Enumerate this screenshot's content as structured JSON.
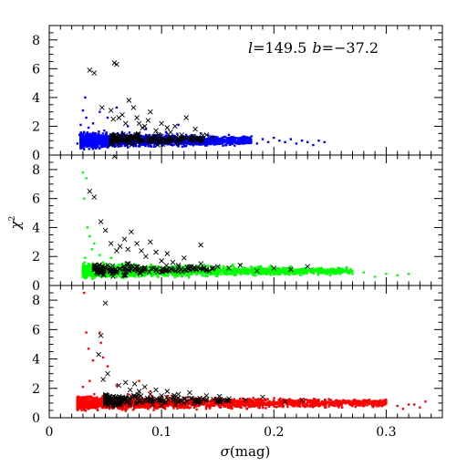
{
  "chart_data": [
    {
      "type": "scatter",
      "annotation": {
        "l_symbol": "l",
        "l_value": "=149.5",
        "b_symbol": "b",
        "b_value": "=−37.2"
      },
      "xlim": [
        0,
        0.35
      ],
      "ylim": [
        0,
        9
      ],
      "yticks": [
        "0",
        "2",
        "4",
        "6",
        "8"
      ],
      "grid": false,
      "series": [
        {
          "marker": "dot",
          "color": "#0000ff",
          "points": [
            [
              0.025,
              0.8
            ],
            [
              0.027,
              1.4
            ],
            [
              0.028,
              2.1
            ],
            [
              0.028,
              0.5
            ],
            [
              0.029,
              1.1
            ],
            [
              0.03,
              0.9
            ],
            [
              0.03,
              3.1
            ],
            [
              0.031,
              1.6
            ],
            [
              0.031,
              0.4
            ],
            [
              0.032,
              4.0
            ],
            [
              0.032,
              1.2
            ],
            [
              0.033,
              2.6
            ],
            [
              0.034,
              0.7
            ],
            [
              0.035,
              1.9
            ],
            [
              0.036,
              1.0
            ],
            [
              0.037,
              1.3
            ],
            [
              0.038,
              0.6
            ],
            [
              0.039,
              2.2
            ],
            [
              0.04,
              0.9
            ],
            [
              0.041,
              1.5
            ],
            [
              0.043,
              1.1
            ],
            [
              0.045,
              3.0
            ],
            [
              0.047,
              0.8
            ],
            [
              0.049,
              1.7
            ],
            [
              0.05,
              1.2
            ],
            [
              0.052,
              2.6
            ],
            [
              0.055,
              0.9
            ],
            [
              0.058,
              1.4
            ],
            [
              0.06,
              3.3
            ],
            [
              0.062,
              1.1
            ],
            [
              0.065,
              1.6
            ],
            [
              0.068,
              0.8
            ],
            [
              0.07,
              2.0
            ],
            [
              0.072,
              1.2
            ],
            [
              0.075,
              1.0
            ],
            [
              0.078,
              1.5
            ],
            [
              0.08,
              0.9
            ],
            [
              0.083,
              1.3
            ],
            [
              0.086,
              1.8
            ],
            [
              0.09,
              1.0
            ],
            [
              0.093,
              1.4
            ],
            [
              0.097,
              0.8
            ],
            [
              0.1,
              1.2
            ],
            [
              0.104,
              1.6
            ],
            [
              0.108,
              0.9
            ],
            [
              0.112,
              1.3
            ],
            [
              0.115,
              2.1
            ],
            [
              0.118,
              1.0
            ],
            [
              0.122,
              1.4
            ],
            [
              0.126,
              0.9
            ],
            [
              0.13,
              1.2
            ],
            [
              0.135,
              1.5
            ],
            [
              0.14,
              1.0
            ],
            [
              0.145,
              1.3
            ],
            [
              0.15,
              0.9
            ],
            [
              0.155,
              1.1
            ],
            [
              0.16,
              1.4
            ],
            [
              0.165,
              0.9
            ],
            [
              0.17,
              1.2
            ],
            [
              0.175,
              1.0
            ],
            [
              0.18,
              1.3
            ],
            [
              0.185,
              0.8
            ],
            [
              0.19,
              1.1
            ],
            [
              0.195,
              0.9
            ],
            [
              0.2,
              1.2
            ],
            [
              0.205,
              1.0
            ],
            [
              0.21,
              0.9
            ],
            [
              0.215,
              1.1
            ],
            [
              0.22,
              0.8
            ],
            [
              0.225,
              1.0
            ],
            [
              0.23,
              0.9
            ],
            [
              0.235,
              0.7
            ],
            [
              0.24,
              1.0
            ],
            [
              0.245,
              0.9
            ]
          ],
          "dense_band": {
            "x_from": 0.028,
            "x_to": 0.18,
            "y_center": 1.0,
            "y_spread": 0.45,
            "count": 1800
          }
        },
        {
          "marker": "cross",
          "color": "#000000",
          "points": [
            [
              0.036,
              5.9
            ],
            [
              0.04,
              5.7
            ],
            [
              0.058,
              6.4
            ],
            [
              0.06,
              6.3
            ],
            [
              0.047,
              3.3
            ],
            [
              0.055,
              3.1
            ],
            [
              0.057,
              2.5
            ],
            [
              0.062,
              2.6
            ],
            [
              0.065,
              2.8
            ],
            [
              0.068,
              2.2
            ],
            [
              0.071,
              3.8
            ],
            [
              0.075,
              3.3
            ],
            [
              0.078,
              2.6
            ],
            [
              0.08,
              2.2
            ],
            [
              0.083,
              1.9
            ],
            [
              0.085,
              2.0
            ],
            [
              0.088,
              2.4
            ],
            [
              0.09,
              3.0
            ],
            [
              0.095,
              1.7
            ],
            [
              0.1,
              2.2
            ],
            [
              0.105,
              1.9
            ],
            [
              0.108,
              1.6
            ],
            [
              0.112,
              2.0
            ],
            [
              0.118,
              1.4
            ],
            [
              0.122,
              2.6
            ],
            [
              0.128,
              1.2
            ],
            [
              0.13,
              1.8
            ],
            [
              0.136,
              1.1
            ],
            [
              0.14,
              1.4
            ],
            [
              0.145,
              1.2
            ]
          ],
          "dense_band": {
            "x_from": 0.055,
            "x_to": 0.14,
            "y_center": 1.1,
            "y_spread": 0.4,
            "count": 160
          }
        }
      ]
    },
    {
      "type": "scatter",
      "xlim": [
        0,
        0.35
      ],
      "ylim": [
        0,
        9
      ],
      "yticks": [
        "0",
        "2",
        "4",
        "6",
        "8"
      ],
      "ylabel": {
        "symbol": "χ",
        "sup": "2"
      },
      "grid": false,
      "series": [
        {
          "marker": "dot",
          "color": "#00ff00",
          "points": [
            [
              0.03,
              7.8
            ],
            [
              0.033,
              7.4
            ],
            [
              0.031,
              6.0
            ],
            [
              0.034,
              4.0
            ],
            [
              0.036,
              3.4
            ],
            [
              0.038,
              2.5
            ],
            [
              0.032,
              1.9
            ],
            [
              0.035,
              1.5
            ],
            [
              0.04,
              2.9
            ],
            [
              0.042,
              1.3
            ],
            [
              0.045,
              2.1
            ],
            [
              0.048,
              1.6
            ],
            [
              0.05,
              1.1
            ],
            [
              0.055,
              1.9
            ],
            [
              0.06,
              1.2
            ],
            [
              0.065,
              1.5
            ],
            [
              0.07,
              1.0
            ],
            [
              0.075,
              1.4
            ],
            [
              0.08,
              1.1
            ],
            [
              0.09,
              1.3
            ],
            [
              0.1,
              1.0
            ],
            [
              0.11,
              1.2
            ],
            [
              0.12,
              0.9
            ],
            [
              0.13,
              1.1
            ],
            [
              0.14,
              1.3
            ],
            [
              0.15,
              0.9
            ],
            [
              0.16,
              1.1
            ],
            [
              0.17,
              1.0
            ],
            [
              0.18,
              1.2
            ],
            [
              0.19,
              0.9
            ],
            [
              0.2,
              1.0
            ],
            [
              0.21,
              1.1
            ],
            [
              0.22,
              0.8
            ],
            [
              0.23,
              1.0
            ],
            [
              0.24,
              0.9
            ],
            [
              0.25,
              0.7
            ],
            [
              0.26,
              1.0
            ],
            [
              0.27,
              0.8
            ],
            [
              0.28,
              0.9
            ],
            [
              0.29,
              0.6
            ],
            [
              0.3,
              0.8
            ],
            [
              0.31,
              0.7
            ],
            [
              0.32,
              0.8
            ]
          ],
          "dense_band": {
            "x_from": 0.03,
            "x_to": 0.27,
            "y_center": 1.0,
            "y_spread": 0.4,
            "count": 2000
          }
        },
        {
          "marker": "cross",
          "color": "#000000",
          "points": [
            [
              0.058,
              8.9
            ],
            [
              0.04,
              6.1
            ],
            [
              0.036,
              6.5
            ],
            [
              0.046,
              4.4
            ],
            [
              0.05,
              3.8
            ],
            [
              0.055,
              2.9
            ],
            [
              0.06,
              2.4
            ],
            [
              0.063,
              2.7
            ],
            [
              0.067,
              3.2
            ],
            [
              0.07,
              2.5
            ],
            [
              0.073,
              3.7
            ],
            [
              0.078,
              2.9
            ],
            [
              0.082,
              2.4
            ],
            [
              0.086,
              2.0
            ],
            [
              0.09,
              3.0
            ],
            [
              0.095,
              2.3
            ],
            [
              0.1,
              1.7
            ],
            [
              0.105,
              2.2
            ],
            [
              0.11,
              1.6
            ],
            [
              0.115,
              1.4
            ],
            [
              0.12,
              1.9
            ],
            [
              0.125,
              1.3
            ],
            [
              0.13,
              1.2
            ],
            [
              0.135,
              1.5
            ],
            [
              0.14,
              1.1
            ],
            [
              0.15,
              1.3
            ],
            [
              0.16,
              1.2
            ],
            [
              0.17,
              1.4
            ],
            [
              0.185,
              1.0
            ],
            [
              0.2,
              1.2
            ],
            [
              0.215,
              1.1
            ],
            [
              0.23,
              1.3
            ],
            [
              0.135,
              2.8
            ]
          ],
          "dense_band": {
            "x_from": 0.04,
            "x_to": 0.15,
            "y_center": 1.1,
            "y_spread": 0.4,
            "count": 150
          }
        }
      ]
    },
    {
      "type": "scatter",
      "xlim": [
        0,
        0.35
      ],
      "ylim": [
        0,
        9
      ],
      "xticks": [
        "0",
        "0.1",
        "0.2",
        "0.3"
      ],
      "yticks": [
        "0",
        "2",
        "4",
        "6",
        "8"
      ],
      "xlabel": {
        "symbol": "σ",
        "text": "(mag)"
      },
      "grid": false,
      "series": [
        {
          "marker": "dot",
          "color": "#ff0000",
          "points": [
            [
              0.031,
              8.5
            ],
            [
              0.033,
              5.8
            ],
            [
              0.035,
              4.7
            ],
            [
              0.039,
              3.9
            ],
            [
              0.045,
              5.8
            ],
            [
              0.046,
              5.1
            ],
            [
              0.048,
              4.1
            ],
            [
              0.052,
              3.5
            ],
            [
              0.036,
              2.5
            ],
            [
              0.03,
              2.1
            ],
            [
              0.04,
              1.6
            ],
            [
              0.05,
              1.3
            ],
            [
              0.06,
              2.2
            ],
            [
              0.07,
              1.6
            ],
            [
              0.08,
              2.5
            ],
            [
              0.085,
              1.3
            ],
            [
              0.09,
              1.8
            ],
            [
              0.1,
              1.1
            ],
            [
              0.11,
              1.5
            ],
            [
              0.12,
              1.0
            ],
            [
              0.13,
              1.3
            ],
            [
              0.14,
              0.9
            ],
            [
              0.15,
              1.2
            ],
            [
              0.16,
              1.0
            ],
            [
              0.17,
              1.3
            ],
            [
              0.18,
              1.0
            ],
            [
              0.19,
              1.1
            ],
            [
              0.2,
              0.9
            ],
            [
              0.21,
              1.2
            ],
            [
              0.22,
              1.0
            ],
            [
              0.23,
              0.8
            ],
            [
              0.24,
              1.1
            ],
            [
              0.25,
              0.9
            ],
            [
              0.26,
              1.0
            ],
            [
              0.27,
              0.8
            ],
            [
              0.28,
              1.2
            ],
            [
              0.29,
              0.9
            ],
            [
              0.3,
              1.0
            ],
            [
              0.31,
              0.8
            ],
            [
              0.32,
              0.9
            ],
            [
              0.33,
              0.7
            ],
            [
              0.335,
              1.1
            ],
            [
              0.315,
              0.6
            ],
            [
              0.325,
              0.9
            ]
          ],
          "dense_band": {
            "x_from": 0.025,
            "x_to": 0.3,
            "y_center": 1.0,
            "y_spread": 0.4,
            "count": 2300
          }
        },
        {
          "marker": "cross",
          "color": "#000000",
          "points": [
            [
              0.05,
              7.8
            ],
            [
              0.046,
              5.6
            ],
            [
              0.044,
              4.3
            ],
            [
              0.048,
              2.6
            ],
            [
              0.052,
              3.0
            ],
            [
              0.062,
              2.2
            ],
            [
              0.068,
              2.4
            ],
            [
              0.072,
              1.9
            ],
            [
              0.076,
              2.3
            ],
            [
              0.08,
              1.8
            ],
            [
              0.085,
              2.1
            ],
            [
              0.09,
              1.6
            ],
            [
              0.095,
              1.9
            ],
            [
              0.1,
              1.5
            ],
            [
              0.105,
              1.8
            ],
            [
              0.11,
              1.4
            ],
            [
              0.115,
              1.6
            ],
            [
              0.12,
              1.3
            ],
            [
              0.125,
              1.7
            ],
            [
              0.13,
              1.2
            ],
            [
              0.14,
              1.5
            ],
            [
              0.15,
              1.1
            ],
            [
              0.16,
              1.3
            ],
            [
              0.175,
              1.2
            ],
            [
              0.19,
              1.4
            ],
            [
              0.21,
              1.1
            ],
            [
              0.225,
              1.2
            ]
          ],
          "dense_band": {
            "x_from": 0.05,
            "x_to": 0.16,
            "y_center": 1.2,
            "y_spread": 0.4,
            "count": 170
          }
        }
      ]
    }
  ]
}
